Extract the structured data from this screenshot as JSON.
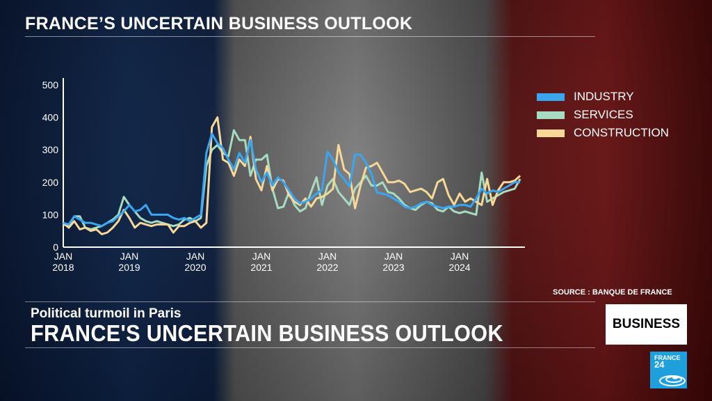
{
  "top_title": "FRANCE’S UNCERTAIN BUSINESS OUTLOOK",
  "chart_data": {
    "type": "line",
    "title": "",
    "xlabel": "",
    "ylabel": "",
    "ylim": [
      0,
      500
    ],
    "yticks": [
      "0",
      "100",
      "200",
      "300",
      "400",
      "500"
    ],
    "xticks": [
      {
        "date": "2018-01",
        "line1": "JAN",
        "line2": "2018"
      },
      {
        "date": "2019-01",
        "line1": "JAN",
        "line2": "2019"
      },
      {
        "date": "2020-01",
        "line1": "JAN",
        "line2": "2020"
      },
      {
        "date": "2021-01",
        "line1": "JAN",
        "line2": "2021"
      },
      {
        "date": "2022-01",
        "line1": "JAN",
        "line2": "2022"
      },
      {
        "date": "2023-01",
        "line1": "JAN",
        "line2": "2023"
      },
      {
        "date": "2024-01",
        "line1": "JAN",
        "line2": "2024"
      }
    ],
    "x_start": "2018-01",
    "x_frequency": "monthly",
    "grid": false,
    "legend_position": "right",
    "series": [
      {
        "name": "INDUSTRY",
        "color": "#3aa6f0",
        "values": [
          75,
          70,
          95,
          85,
          75,
          75,
          70,
          65,
          75,
          80,
          95,
          110,
          130,
          110,
          115,
          130,
          100,
          100,
          100,
          100,
          90,
          85,
          90,
          80,
          90,
          100,
          290,
          350,
          320,
          305,
          270,
          240,
          290,
          260,
          330,
          240,
          200,
          230,
          190,
          215,
          200,
          175,
          150,
          135,
          140,
          150,
          165,
          176,
          294,
          270,
          230,
          210,
          187,
          285,
          285,
          260,
          225,
          168,
          165,
          160,
          150,
          140,
          125,
          120,
          125,
          135,
          140,
          130,
          125,
          120,
          125,
          125,
          130,
          130,
          125,
          150,
          180,
          165,
          175,
          170,
          180,
          190,
          200,
          200
        ]
      },
      {
        "name": "SERVICES",
        "color": "#a8dcc0",
        "values": [
          70,
          65,
          95,
          95,
          60,
          55,
          60,
          65,
          75,
          85,
          100,
          155,
          130,
          110,
          90,
          80,
          75,
          80,
          75,
          70,
          65,
          70,
          85,
          90,
          80,
          90,
          250,
          300,
          315,
          290,
          280,
          360,
          330,
          330,
          220,
          270,
          270,
          285,
          180,
          120,
          125,
          170,
          130,
          110,
          120,
          170,
          215,
          130,
          190,
          210,
          170,
          150,
          130,
          180,
          200,
          220,
          190,
          190,
          200,
          170,
          165,
          150,
          130,
          120,
          115,
          130,
          140,
          135,
          115,
          110,
          125,
          110,
          105,
          110,
          105,
          100,
          230,
          140,
          150,
          160,
          170,
          175,
          180,
          210
        ]
      },
      {
        "name": "CONSTRUCTION",
        "color": "#f8d898",
        "values": [
          75,
          60,
          80,
          55,
          60,
          50,
          55,
          40,
          45,
          60,
          80,
          115,
          90,
          60,
          75,
          70,
          65,
          70,
          70,
          70,
          45,
          65,
          65,
          75,
          80,
          60,
          75,
          370,
          400,
          270,
          260,
          220,
          270,
          250,
          340,
          210,
          175,
          250,
          175,
          210,
          205,
          160,
          140,
          130,
          150,
          125,
          150,
          155,
          165,
          180,
          315,
          240,
          225,
          120,
          190,
          245,
          250,
          260,
          230,
          200,
          200,
          205,
          195,
          170,
          175,
          180,
          170,
          150,
          200,
          210,
          160,
          130,
          165,
          140,
          150,
          140,
          130,
          210,
          130,
          175,
          200,
          200,
          205,
          220
        ]
      }
    ]
  },
  "source": "SOURCE : BANQUE DE FRANCE",
  "lower_third": {
    "subtitle": "Political turmoil in Paris",
    "headline": "FRANCE'S UNCERTAIN BUSINESS OUTLOOK"
  },
  "program_tag": "BUSINESS",
  "logo": {
    "line1": "FRANCE",
    "line2": "24",
    "color": "#1ea0dc"
  }
}
